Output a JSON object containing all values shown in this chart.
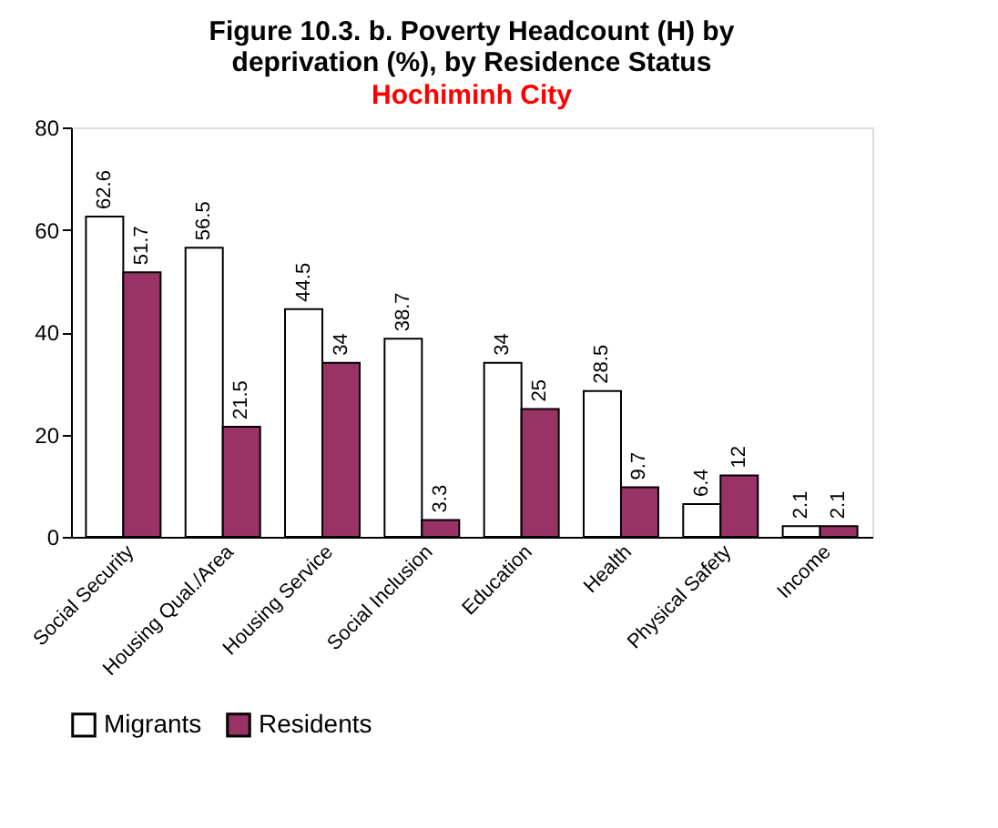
{
  "chart_data": {
    "type": "bar",
    "title": "Figure 10.3. b. Poverty Headcount (H) by deprivation (%), by Residence Status",
    "subtitle": "Hochiminh City",
    "categories": [
      "Social Security",
      "Housing Qual./Area",
      "Housing Service",
      "Social Inclusion",
      "Education",
      "Health",
      "Physical Safety",
      "Income"
    ],
    "series": [
      {
        "name": "Migrants",
        "color": "#ffffff",
        "values": [
          62.6,
          56.5,
          44.5,
          38.7,
          34,
          28.5,
          6.4,
          2.1
        ]
      },
      {
        "name": "Residents",
        "color": "#993366",
        "values": [
          51.7,
          21.5,
          34,
          3.3,
          25,
          9.7,
          12,
          2.1
        ]
      }
    ],
    "ylim": [
      0,
      80
    ],
    "yticks": [
      0,
      20,
      40,
      60,
      80
    ],
    "grid": false,
    "legend": "bottom",
    "data_labels": true
  }
}
